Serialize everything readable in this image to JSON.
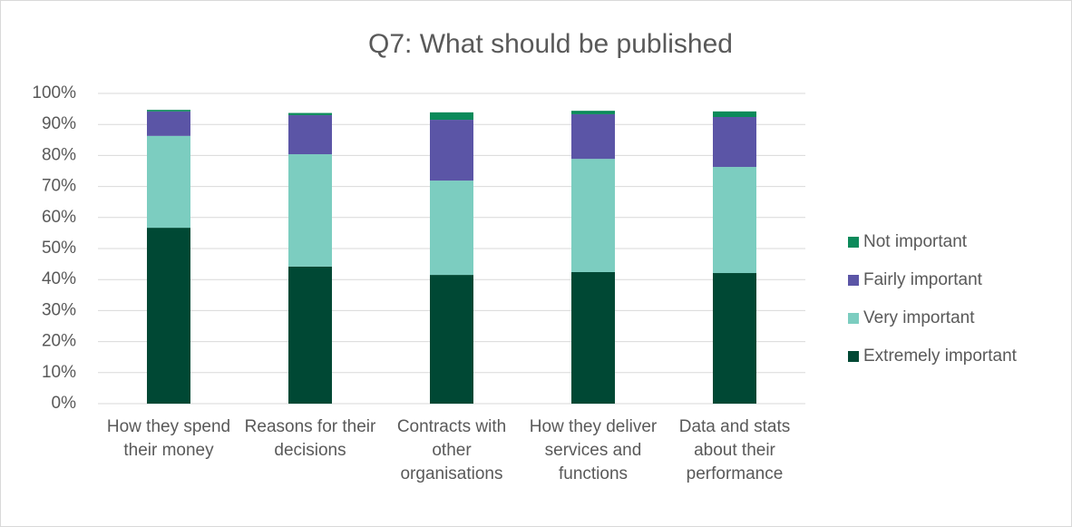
{
  "chart_data": {
    "type": "stacked_bar",
    "title": "Q7: What should be published",
    "categories": [
      "How they spend their money",
      "Reasons for their decisions",
      "Contracts with other organisations",
      "How they deliver services and functions",
      "Data and stats about their performance"
    ],
    "series": [
      {
        "name": "Extremely important",
        "color": "#004834",
        "values": [
          56.7,
          44.2,
          41.5,
          42.4,
          42.1
        ]
      },
      {
        "name": "Very important",
        "color": "#7ccdc0",
        "values": [
          29.6,
          36.2,
          30.4,
          36.5,
          34.2
        ]
      },
      {
        "name": "Fairly important",
        "color": "#5b55a6",
        "values": [
          7.9,
          12.6,
          19.6,
          14.4,
          16.1
        ]
      },
      {
        "name": "Not important",
        "color": "#0b8a5a",
        "values": [
          0.5,
          0.7,
          2.4,
          1.1,
          1.8
        ]
      }
    ],
    "ylim": [
      0,
      100
    ],
    "yticks": [
      {
        "value": 0,
        "label": "0%"
      },
      {
        "value": 10,
        "label": "10%"
      },
      {
        "value": 20,
        "label": "20%"
      },
      {
        "value": 30,
        "label": "30%"
      },
      {
        "value": 40,
        "label": "40%"
      },
      {
        "value": 50,
        "label": "50%"
      },
      {
        "value": 60,
        "label": "60%"
      },
      {
        "value": 70,
        "label": "70%"
      },
      {
        "value": 80,
        "label": "80%"
      },
      {
        "value": 90,
        "label": "90%"
      },
      {
        "value": 100,
        "label": "100%"
      }
    ],
    "grid": true,
    "legend": "right"
  }
}
